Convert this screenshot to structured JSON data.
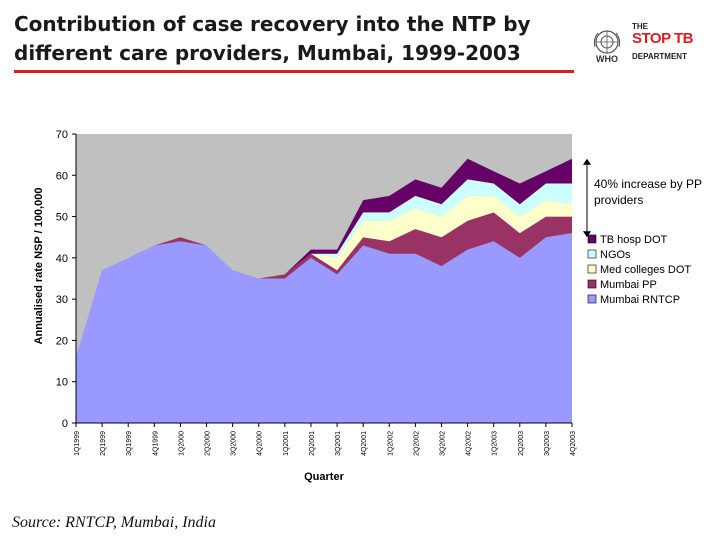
{
  "slide": {
    "title_line1": "Contribution of case recovery into the NTP by",
    "title_line2": "different care providers, Mumbai, 1999-2003",
    "source": "Source: RNTCP, Mumbai, India",
    "accent_color": "#d42020"
  },
  "logos": {
    "who_text": "WHO",
    "stoptb_the": "THE",
    "stoptb_main": "STOP TB",
    "stoptb_dept": "DEPARTMENT",
    "who_icon": "un-emblem-icon"
  },
  "chart_data": {
    "type": "area",
    "stacked": true,
    "title": "",
    "xlabel": "Quarter",
    "ylabel": "Annualised rate NSP / 100,000",
    "ylim": [
      0,
      70
    ],
    "yticks": [
      0,
      10,
      20,
      30,
      40,
      50,
      60,
      70
    ],
    "plot_background": "#c0c0c0",
    "categories": [
      "1Q1999",
      "2Q1999",
      "3Q1999",
      "4Q1999",
      "1Q2000",
      "2Q2000",
      "3Q2000",
      "4Q2000",
      "1Q2001",
      "2Q2001",
      "3Q2001",
      "4Q2001",
      "1Q2002",
      "2Q2002",
      "3Q2002",
      "4Q2002",
      "1Q2003",
      "2Q2003",
      "3Q2003",
      "4Q2003"
    ],
    "series": [
      {
        "name": "Mumbai RNTCP",
        "color": "#9999ff",
        "values": [
          16,
          37,
          40,
          43,
          44,
          43,
          37,
          35,
          35,
          40,
          36,
          43,
          41,
          41,
          38,
          42,
          44,
          40,
          45,
          46
        ]
      },
      {
        "name": "Mumbai PP",
        "color": "#993366",
        "values": [
          0,
          0,
          0,
          0,
          1,
          0,
          0,
          0,
          1,
          1,
          1,
          2,
          3,
          6,
          7,
          7,
          7,
          6,
          5,
          4
        ]
      },
      {
        "name": "Med colleges DOT",
        "color": "#ffffcc",
        "values": [
          0,
          0,
          0,
          0,
          0,
          0,
          0,
          0,
          0,
          0,
          3,
          4,
          5,
          5,
          5,
          6,
          4,
          4,
          4,
          3
        ]
      },
      {
        "name": "NGOs",
        "color": "#ccffff",
        "values": [
          0,
          0,
          0,
          0,
          0,
          0,
          0,
          0,
          0,
          0,
          1,
          2,
          2,
          3,
          3,
          4,
          3,
          3,
          4,
          5
        ]
      },
      {
        "name": "TB hosp DOT",
        "color": "#660066",
        "values": [
          0,
          0,
          0,
          0,
          0,
          0,
          0,
          0,
          0,
          1,
          1,
          3,
          4,
          4,
          4,
          5,
          3,
          5,
          3,
          6
        ]
      }
    ],
    "legend_position": "right",
    "annotation": {
      "text_line1": "40% increase by PP",
      "text_line2": "providers"
    }
  }
}
